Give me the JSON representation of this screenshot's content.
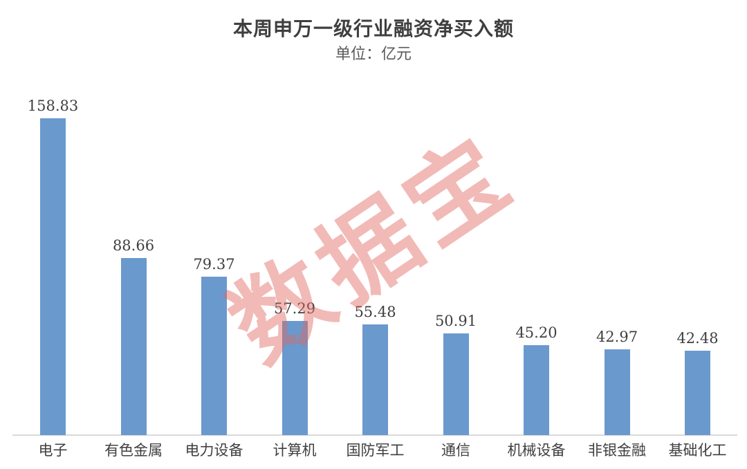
{
  "title": "本周申万一级行业融资净买入额",
  "subtitle": "单位：亿元",
  "watermark": "数据宝",
  "colors": {
    "bar": "#6A99CE",
    "axis_line": "#D9D9D9",
    "text": "#3F3F3F",
    "subtitle_text": "#595959",
    "watermark_rgba": "rgba(224,103,96,0.45)"
  },
  "chart_data": {
    "type": "bar",
    "title": "本周申万一级行业融资净买入额",
    "subtitle": "单位：亿元",
    "unit": "亿元",
    "categories": [
      "电子",
      "有色金属",
      "电力设备",
      "计算机",
      "国防军工",
      "通信",
      "机械设备",
      "非银金融",
      "基础化工"
    ],
    "values": [
      158.83,
      88.66,
      79.37,
      57.29,
      55.48,
      50.91,
      45.2,
      42.97,
      42.48
    ],
    "value_labels": [
      "158.83",
      "88.66",
      "79.37",
      "57.29",
      "55.48",
      "50.91",
      "45.20",
      "42.97",
      "42.48"
    ],
    "bar_color": "#6A99CE",
    "xlabel": "",
    "ylabel": "",
    "ylim": [
      0,
      170
    ],
    "grid": false,
    "legend": false,
    "y_axis_visible": false,
    "watermark_text": "数据宝"
  }
}
